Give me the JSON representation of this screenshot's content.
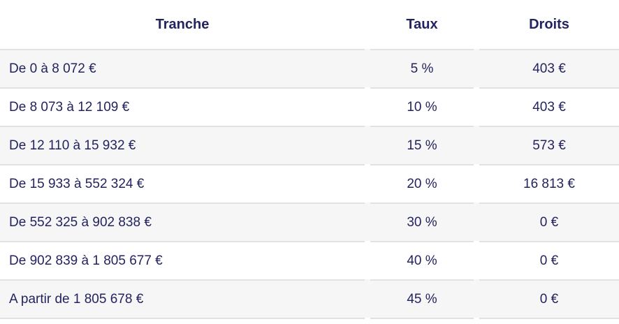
{
  "table": {
    "columns": {
      "tranche": "Tranche",
      "taux": "Taux",
      "droits": "Droits"
    },
    "rows": [
      {
        "tranche": "De 0 à 8 072 €",
        "taux": "5 %",
        "droits": "403 €"
      },
      {
        "tranche": "De 8 073 à 12 109 €",
        "taux": "10 %",
        "droits": "403 €"
      },
      {
        "tranche": "De 12 110 à 15 932 €",
        "taux": "15 %",
        "droits": "573 €"
      },
      {
        "tranche": "De 15 933 à 552 324 €",
        "taux": "20 %",
        "droits": "16 813 €"
      },
      {
        "tranche": "De 552 325 à 902 838 €",
        "taux": "30 %",
        "droits": "0 €"
      },
      {
        "tranche": "De 902 839 à 1 805 677 €",
        "taux": "40 %",
        "droits": "0 €"
      },
      {
        "tranche": "A partir de 1 805 678 €",
        "taux": "45 %",
        "droits": "0 €"
      }
    ],
    "colors": {
      "text": "#23235f",
      "row_stripe": "#f6f6f6",
      "row_plain": "#ffffff",
      "separator": "#e2e2e2"
    }
  }
}
